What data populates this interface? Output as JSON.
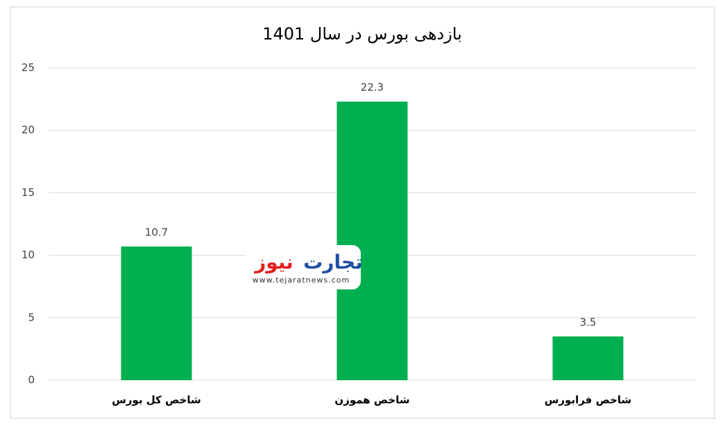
{
  "chart_data": {
    "type": "bar",
    "title": "بازدهی بورس در سال 1401",
    "categories": [
      "شاخص کل بورس",
      "شاخص هموزن",
      "شاخص فرابورس"
    ],
    "values": [
      10.7,
      22.3,
      3.5
    ],
    "color": "#00b050",
    "ylim": [
      0,
      25
    ],
    "yticks": [
      0,
      5,
      10,
      15,
      20,
      25
    ],
    "grid": true,
    "annotations": [
      "تجارت",
      "نیوز",
      "www.tejaratnews.com"
    ]
  }
}
